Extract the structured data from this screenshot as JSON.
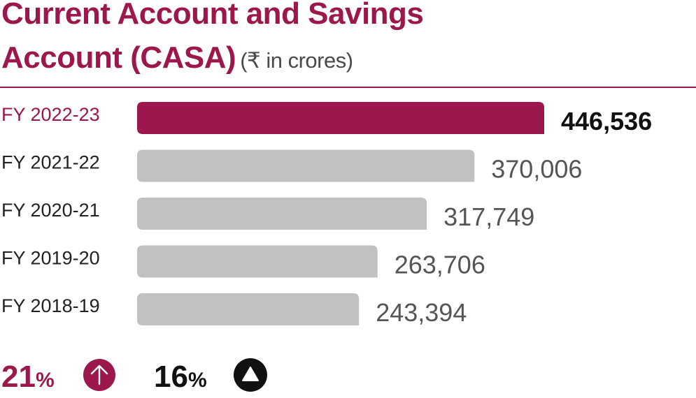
{
  "title": {
    "line1": "Current Account and Savings",
    "line2": "Account (CASA)",
    "unit": "(₹ in crores)"
  },
  "chart_data": {
    "type": "bar",
    "orientation": "horizontal",
    "categories": [
      "FY 2022-23",
      "FY 2021-22",
      "FY 2020-21",
      "FY 2019-20",
      "FY 2018-19"
    ],
    "values": [
      446536,
      370006,
      317749,
      263706,
      243394
    ],
    "value_labels": [
      "446,536",
      "370,006",
      "317,749",
      "263,706",
      "243,394"
    ],
    "highlight_index": 0,
    "colors": {
      "highlight": "#9b174c",
      "default": "#c0c1c3",
      "highlight_label": "#111111",
      "default_label": "#555555",
      "category": "#222222"
    }
  },
  "footer": {
    "stat1": {
      "value": "21",
      "unit": "%",
      "icon": "arrow-up-circle-icon",
      "color": "#9b174c"
    },
    "stat2": {
      "value": "16",
      "unit": "%",
      "icon": "triangle-up-circle-icon",
      "color": "#111111"
    }
  }
}
